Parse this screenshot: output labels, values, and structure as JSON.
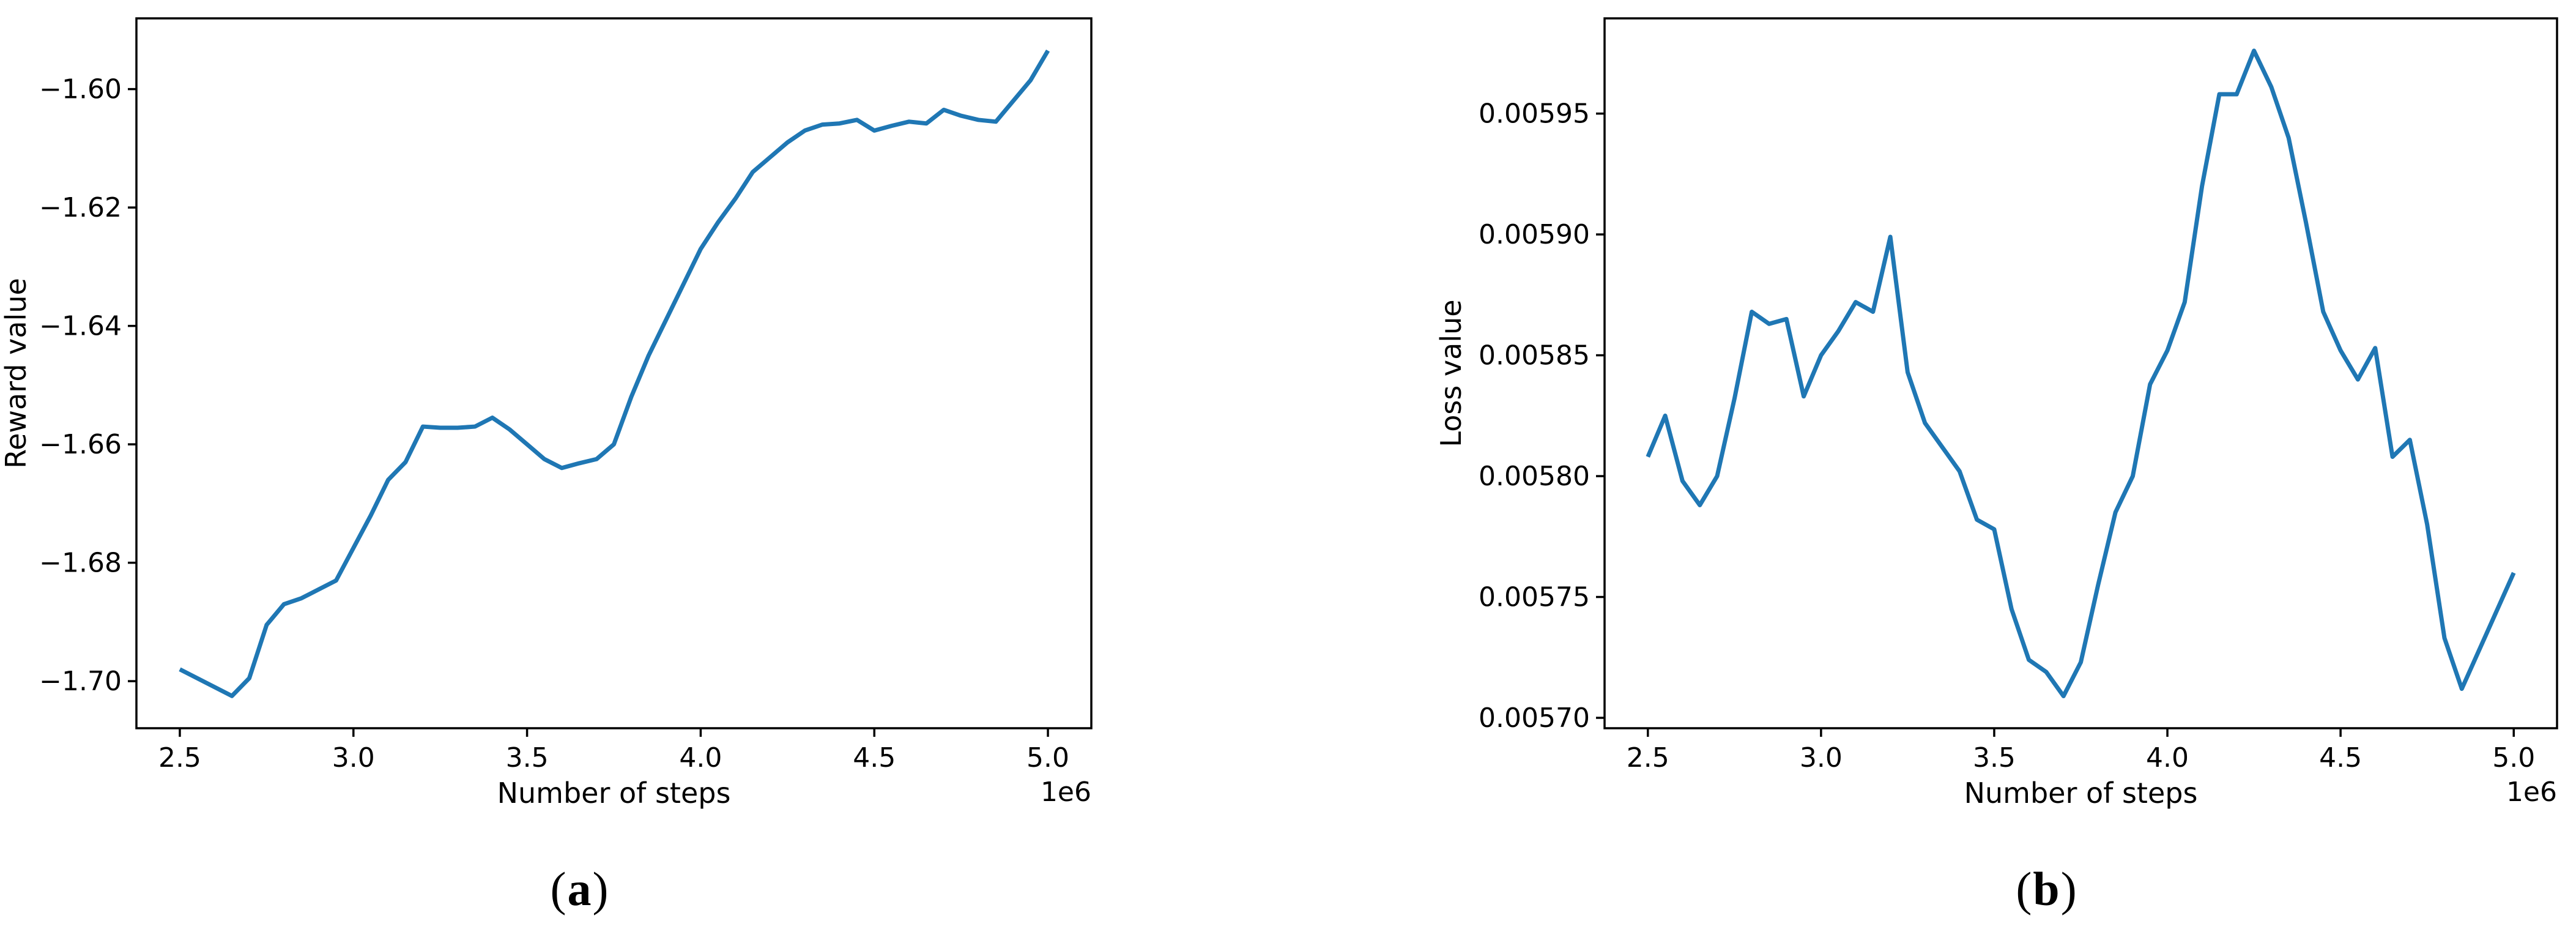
{
  "page": {
    "background": "#ffffff"
  },
  "style": {
    "line_color": "#1f77b4",
    "axis_color": "#000000",
    "text_color": "#000000"
  },
  "chart_data": [
    {
      "id": "reward",
      "type": "line",
      "title": "",
      "xlabel": "Number of steps",
      "ylabel": "Reward value",
      "x_offset_label": "1e6",
      "caption": "(a)",
      "caption_parts": [
        "(",
        "a",
        ")"
      ],
      "legend": "none",
      "grid": false,
      "xlim": [
        2.375,
        5.125
      ],
      "ylim": [
        -1.70795,
        -1.58805
      ],
      "xticks": [
        2.5,
        3.0,
        3.5,
        4.0,
        4.5,
        5.0
      ],
      "xtick_labels": [
        "2.5",
        "3.0",
        "3.5",
        "4.0",
        "4.5",
        "5.0"
      ],
      "yticks": [
        -1.7,
        -1.68,
        -1.66,
        -1.64,
        -1.62,
        -1.6
      ],
      "ytick_labels": [
        "−1.70",
        "−1.68",
        "−1.66",
        "−1.64",
        "−1.62",
        "−1.60"
      ],
      "x_units": "1e6 steps",
      "x": [
        2.5,
        2.55,
        2.6,
        2.65,
        2.7,
        2.75,
        2.8,
        2.85,
        2.9,
        2.95,
        3.0,
        3.05,
        3.1,
        3.15,
        3.2,
        3.25,
        3.3,
        3.35,
        3.4,
        3.45,
        3.5,
        3.55,
        3.6,
        3.65,
        3.7,
        3.75,
        3.8,
        3.85,
        3.9,
        3.95,
        4.0,
        4.05,
        4.1,
        4.15,
        4.2,
        4.25,
        4.3,
        4.35,
        4.4,
        4.45,
        4.5,
        4.55,
        4.6,
        4.65,
        4.7,
        4.75,
        4.8,
        4.85,
        4.9,
        4.95,
        5.0
      ],
      "y": [
        -1.698,
        -1.6995,
        -1.701,
        -1.7025,
        -1.6995,
        -1.6905,
        -1.687,
        -1.686,
        -1.6845,
        -1.683,
        -1.6775,
        -1.672,
        -1.666,
        -1.663,
        -1.657,
        -1.6572,
        -1.6572,
        -1.657,
        -1.6555,
        -1.6575,
        -1.66,
        -1.6625,
        -1.664,
        -1.6632,
        -1.6625,
        -1.66,
        -1.652,
        -1.645,
        -1.639,
        -1.633,
        -1.627,
        -1.6225,
        -1.6185,
        -1.614,
        -1.6115,
        -1.609,
        -1.607,
        -1.606,
        -1.6058,
        -1.6052,
        -1.607,
        -1.6062,
        -1.6055,
        -1.6058,
        -1.6035,
        -1.6045,
        -1.6052,
        -1.6055,
        -1.602,
        -1.5985,
        -1.5935
      ]
    },
    {
      "id": "loss",
      "type": "line",
      "title": "",
      "xlabel": "Number of steps",
      "ylabel": "Loss value",
      "x_offset_label": "1e6",
      "caption": "(b)",
      "caption_parts": [
        "(",
        "b",
        ")"
      ],
      "legend": "none",
      "grid": false,
      "xlim": [
        2.375,
        5.125
      ],
      "ylim": [
        0.0056957,
        0.0059894
      ],
      "xticks": [
        2.5,
        3.0,
        3.5,
        4.0,
        4.5,
        5.0
      ],
      "xtick_labels": [
        "2.5",
        "3.0",
        "3.5",
        "4.0",
        "4.5",
        "5.0"
      ],
      "yticks": [
        0.0057,
        0.00575,
        0.0058,
        0.00585,
        0.0059,
        0.00595
      ],
      "ytick_labels": [
        "0.00570",
        "0.00575",
        "0.00580",
        "0.00585",
        "0.00590",
        "0.00595"
      ],
      "x_units": "1e6 steps",
      "x": [
        2.5,
        2.55,
        2.6,
        2.65,
        2.7,
        2.75,
        2.8,
        2.85,
        2.9,
        2.95,
        3.0,
        3.05,
        3.1,
        3.15,
        3.2,
        3.25,
        3.3,
        3.35,
        3.4,
        3.45,
        3.5,
        3.55,
        3.6,
        3.65,
        3.7,
        3.75,
        3.8,
        3.85,
        3.9,
        3.95,
        4.0,
        4.05,
        4.1,
        4.15,
        4.2,
        4.25,
        4.3,
        4.35,
        4.4,
        4.45,
        4.5,
        4.55,
        4.6,
        4.65,
        4.7,
        4.75,
        4.8,
        4.85,
        4.9,
        4.95,
        5.0
      ],
      "y": [
        0.005808,
        0.005825,
        0.005798,
        0.005788,
        0.0058,
        0.005832,
        0.005868,
        0.005863,
        0.005865,
        0.005833,
        0.00585,
        0.00586,
        0.005872,
        0.005868,
        0.005899,
        0.005843,
        0.005822,
        0.005812,
        0.005802,
        0.005782,
        0.005778,
        0.005745,
        0.005724,
        0.005719,
        0.005709,
        0.005723,
        0.005755,
        0.005785,
        0.0058,
        0.005838,
        0.005852,
        0.005872,
        0.00592,
        0.005958,
        0.005958,
        0.005976,
        0.005961,
        0.00594,
        0.005905,
        0.005868,
        0.005852,
        0.00584,
        0.005853,
        0.005808,
        0.005815,
        0.00578,
        0.005733,
        0.005712,
        0.005728,
        0.005744,
        0.00576
      ]
    }
  ]
}
